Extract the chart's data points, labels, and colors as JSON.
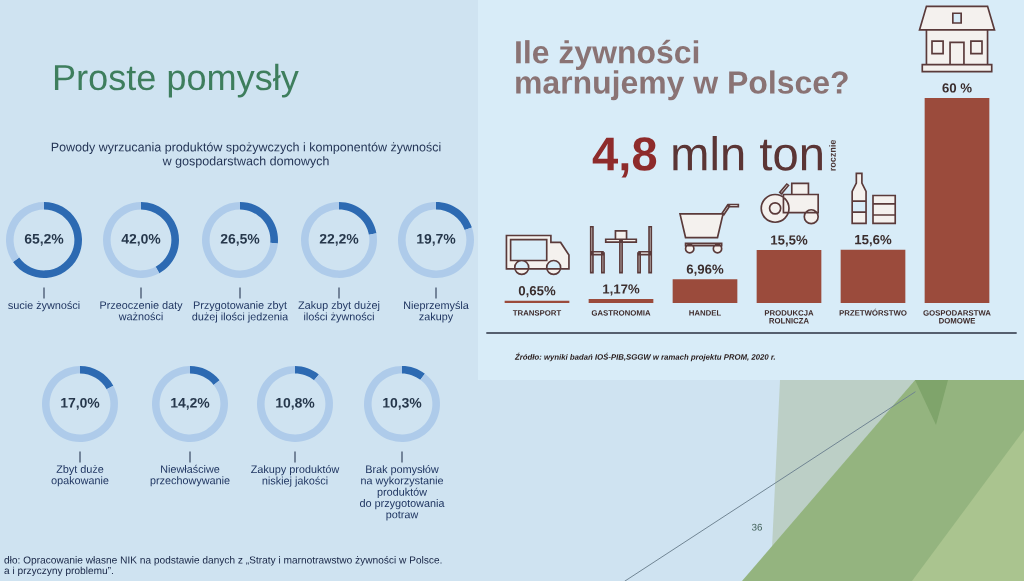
{
  "chart_data": [
    {
      "type": "other",
      "title": "Proste pomysły",
      "subtitle": "Powody wyrzucania produktów spożywczych i komponentów żywności\nw gospodarstwach domowych",
      "annotations": [
        "dło: Opracowanie własne NIK na podstawie danych z „Straty i marnotrawstwo żywności w Polsce.\na i przyczyny problemu”.",
        "36"
      ]
    },
    {
      "type": "donut",
      "title": "sucie żywności",
      "categories": [
        null,
        null
      ],
      "values": [
        65.2,
        34.8
      ],
      "colors": [
        "#2d6ab2",
        "#aecbea"
      ],
      "annotations": [
        "65,2%"
      ]
    },
    {
      "type": "donut",
      "title": "Przeoczenie daty\nważności",
      "categories": [
        null,
        null
      ],
      "values": [
        42.0,
        58.0
      ],
      "colors": [
        "#2d6ab2",
        "#aecbea"
      ],
      "annotations": [
        "42,0%"
      ]
    },
    {
      "type": "donut",
      "title": "Przygotowanie zbyt\ndużej ilości jedzenia",
      "categories": [
        null,
        null
      ],
      "values": [
        26.5,
        73.5
      ],
      "colors": [
        "#2d6ab2",
        "#aecbea"
      ],
      "annotations": [
        "26,5%"
      ]
    },
    {
      "type": "donut",
      "title": "Zakup zbyt dużej\nilości żywności",
      "categories": [
        null,
        null
      ],
      "values": [
        22.2,
        77.8
      ],
      "colors": [
        "#2d6ab2",
        "#aecbea"
      ],
      "annotations": [
        "22,2%"
      ]
    },
    {
      "type": "donut",
      "title": "Nieprzemyśla\nzakupy",
      "categories": [
        null,
        null
      ],
      "values": [
        19.7,
        80.3
      ],
      "colors": [
        "#2d6ab2",
        "#aecbea"
      ],
      "annotations": [
        "19,7%"
      ]
    },
    {
      "type": "donut",
      "title": "Zbyt duże\nopakowanie",
      "categories": [
        null,
        null
      ],
      "values": [
        17.0,
        83.0
      ],
      "colors": [
        "#2d6ab2",
        "#aecbea"
      ],
      "annotations": [
        "17,0%"
      ]
    },
    {
      "type": "donut",
      "title": "Niewłaściwe\nprzechowywanie",
      "categories": [
        null,
        null
      ],
      "values": [
        14.2,
        85.8
      ],
      "colors": [
        "#2d6ab2",
        "#aecbea"
      ],
      "annotations": [
        "14,2%"
      ]
    },
    {
      "type": "donut",
      "title": "Zakupy produktów\nniskiej jakości",
      "categories": [
        null,
        null
      ],
      "values": [
        10.8,
        89.2
      ],
      "colors": [
        "#2d6ab2",
        "#aecbea"
      ],
      "annotations": [
        "10,8%"
      ]
    },
    {
      "type": "donut",
      "title": "Brak pomysłów\nna wykorzystanie\nproduktów\ndo przygotowania\npotraw",
      "categories": [
        null,
        null
      ],
      "values": [
        10.3,
        89.7
      ],
      "colors": [
        "#2d6ab2",
        "#aecbea"
      ],
      "annotations": [
        "10,3%"
      ]
    },
    {
      "type": "bar",
      "title": "Ile żywności\nmarnujemy w Polsce?",
      "subtitle": "4,8 mln ton",
      "annotations": [
        "rocznie",
        "Źródło: wyniki badań IOŚ-PIB,SGGW w ramach projektu PROM, 2020 r."
      ],
      "categories": [
        "TRANSPORT",
        "GASTRONOMIA",
        "HANDEL",
        "PRODUKCJA\nROLNICZA",
        "PRZETWÓRSTWO",
        "GOSPODARSTWA\nDOMOWE"
      ],
      "values": [
        0.65,
        1.17,
        6.96,
        15.5,
        15.6,
        60
      ],
      "color": "#9b4b3c",
      "value_labels": [
        "0,65%",
        "1,17%",
        "6,96%",
        "15,5%",
        "15,6%",
        "60 %"
      ]
    }
  ]
}
